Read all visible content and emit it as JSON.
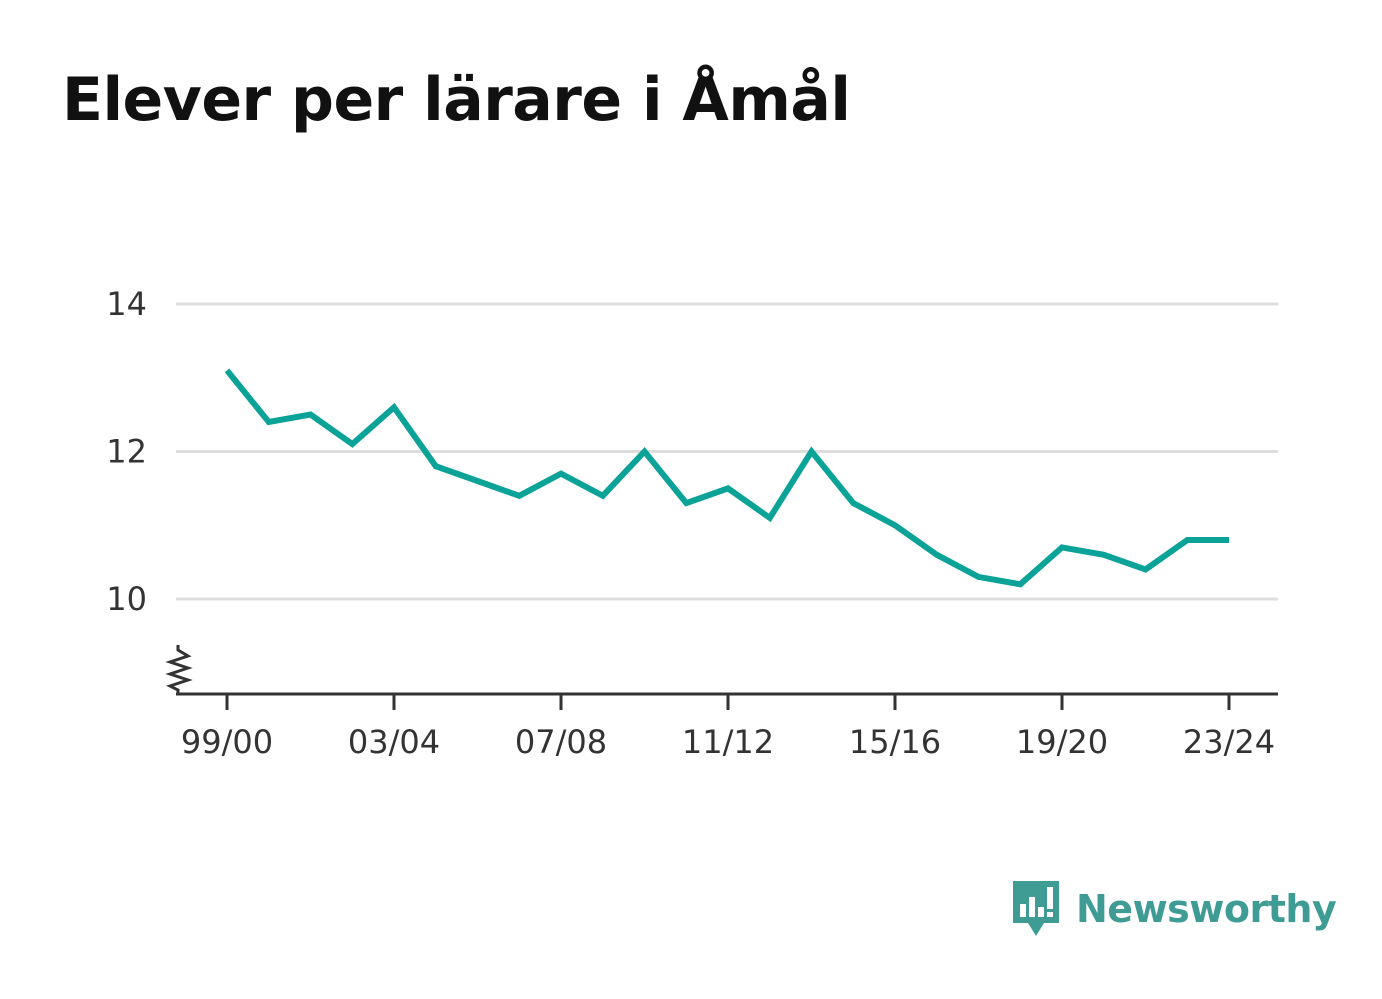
{
  "chart_data": {
    "type": "line",
    "title": "Elever per lärare i Åmål",
    "xlabel": "",
    "ylabel": "",
    "x": [
      "99/00",
      "00/01",
      "01/02",
      "02/03",
      "03/04",
      "04/05",
      "05/06",
      "06/07",
      "07/08",
      "08/09",
      "09/10",
      "10/11",
      "11/12",
      "12/13",
      "13/14",
      "14/15",
      "15/16",
      "16/17",
      "17/18",
      "18/19",
      "19/20",
      "20/21",
      "21/22",
      "22/23",
      "23/24"
    ],
    "series": [
      {
        "color": "#0ba397",
        "values": [
          13.1,
          12.4,
          12.5,
          12.1,
          12.6,
          11.8,
          11.6,
          11.4,
          11.7,
          11.4,
          12.0,
          11.3,
          11.5,
          11.1,
          12.0,
          11.3,
          11.0,
          10.6,
          10.3,
          10.2,
          10.7,
          10.6,
          10.4,
          10.8,
          10.8
        ]
      }
    ],
    "x_tick_labels": [
      "99/00",
      "03/04",
      "07/08",
      "11/12",
      "15/16",
      "19/20",
      "23/24"
    ],
    "y_ticks": [
      10,
      12,
      14
    ],
    "ylim": [
      8.7,
      14
    ],
    "y_axis_break": true,
    "grid": true,
    "colors": {
      "line": "#0ba397",
      "grid": "#dddddd",
      "axis": "#333333"
    }
  },
  "brand": {
    "name": "Newsworthy",
    "logo_icon": "newsworthy-bar-chart-speech-bubble-icon",
    "color": "#3e9c94"
  }
}
